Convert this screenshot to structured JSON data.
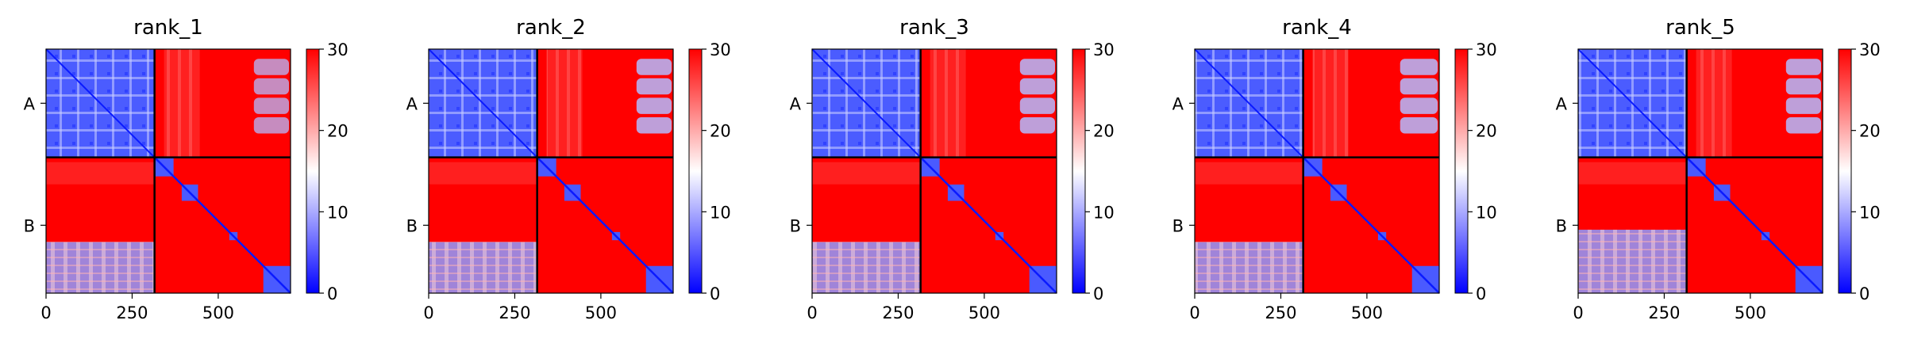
{
  "figure": {
    "background": "#ffffff"
  },
  "colormap": {
    "name": "bwr",
    "low": "#0000ff",
    "mid": "#ffffff",
    "high": "#ff0000",
    "vmin": 0,
    "vmax": 30
  },
  "chart_data": [
    {
      "type": "heatmap",
      "title": "rank_1",
      "xticks": [
        0,
        250,
        500
      ],
      "chain_labels": [
        "A",
        "B"
      ],
      "chain_boundary": 315,
      "matrix_size": 710,
      "colorbar": {
        "ticks": [
          0,
          10,
          20,
          30
        ],
        "vmin": 0,
        "vmax": 30
      },
      "blocks": {
        "A_A": "low",
        "A_B": "high",
        "B_A": "high",
        "B_B": "high"
      },
      "variant": 0
    },
    {
      "type": "heatmap",
      "title": "rank_2",
      "xticks": [
        0,
        250,
        500
      ],
      "chain_labels": [
        "A",
        "B"
      ],
      "chain_boundary": 315,
      "matrix_size": 710,
      "colorbar": {
        "ticks": [
          0,
          10,
          20,
          30
        ],
        "vmin": 0,
        "vmax": 30
      },
      "blocks": {
        "A_A": "low",
        "A_B": "high",
        "B_A": "high",
        "B_B": "high"
      },
      "variant": 1
    },
    {
      "type": "heatmap",
      "title": "rank_3",
      "xticks": [
        0,
        250,
        500
      ],
      "chain_labels": [
        "A",
        "B"
      ],
      "chain_boundary": 315,
      "matrix_size": 710,
      "colorbar": {
        "ticks": [
          0,
          10,
          20,
          30
        ],
        "vmin": 0,
        "vmax": 30
      },
      "blocks": {
        "A_A": "low",
        "A_B": "high",
        "B_A": "high",
        "B_B": "high"
      },
      "variant": 2
    },
    {
      "type": "heatmap",
      "title": "rank_4",
      "xticks": [
        0,
        250,
        500
      ],
      "chain_labels": [
        "A",
        "B"
      ],
      "chain_boundary": 315,
      "matrix_size": 710,
      "colorbar": {
        "ticks": [
          0,
          10,
          20,
          30
        ],
        "vmin": 0,
        "vmax": 30
      },
      "blocks": {
        "A_A": "low",
        "A_B": "high",
        "B_A": "high",
        "B_B": "high"
      },
      "variant": 3
    },
    {
      "type": "heatmap",
      "title": "rank_5",
      "xticks": [
        0,
        250,
        500
      ],
      "chain_labels": [
        "A",
        "B"
      ],
      "chain_boundary": 315,
      "matrix_size": 710,
      "colorbar": {
        "ticks": [
          0,
          10,
          20,
          30
        ],
        "vmin": 0,
        "vmax": 30
      },
      "blocks": {
        "A_A": "low",
        "A_B": "high",
        "B_A": "high",
        "B_B": "high"
      },
      "variant": 4
    }
  ]
}
